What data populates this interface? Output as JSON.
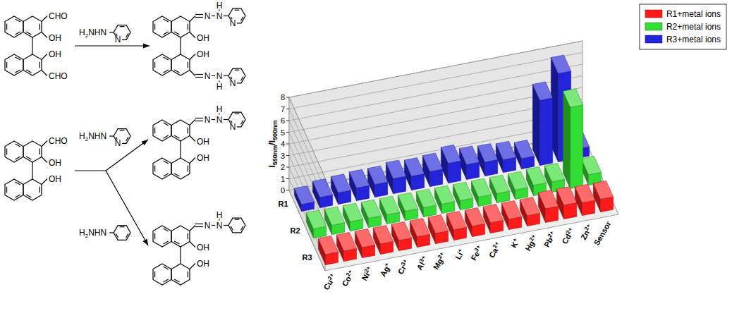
{
  "chart_data": {
    "type": "bar",
    "y_label": "I550nm/I500nm",
    "categories": [
      "Cu2+",
      "Co2+",
      "Ni2+",
      "Ag+",
      "Cr3+",
      "Al3+",
      "Mg2+",
      "Li+",
      "Fe3+",
      "Ca2+",
      "K+",
      "Hg2+",
      "Pb2+",
      "Cd2+",
      "Zn2+",
      "Sensor"
    ],
    "depth_categories": [
      "R1",
      "R2",
      "R3"
    ],
    "series": [
      {
        "name": "R1+metal ions",
        "color": "#ff1a1a",
        "values": [
          0.9,
          0.9,
          0.9,
          0.9,
          0.9,
          0.9,
          0.9,
          0.9,
          0.9,
          0.9,
          0.9,
          0.9,
          1.2,
          1.2,
          1.1,
          1.1
        ]
      },
      {
        "name": "R2+metal ions",
        "color": "#33dd33",
        "values": [
          0.8,
          0.8,
          0.8,
          0.8,
          0.8,
          0.8,
          0.8,
          0.8,
          0.8,
          0.8,
          0.8,
          0.8,
          0.9,
          0.9,
          7.0,
          0.9
        ]
      },
      {
        "name": "R3+metal ions",
        "color": "#2323d9",
        "values": [
          0.6,
          0.9,
          1.0,
          1.1,
          1.1,
          1.3,
          1.2,
          1.3,
          1.7,
          1.3,
          1.2,
          1.1,
          0.9,
          5.6,
          7.6,
          0.8
        ]
      }
    ],
    "ylim": [
      0,
      8
    ],
    "yticks": [
      0,
      1,
      2,
      3,
      4,
      5,
      6,
      7,
      8
    ],
    "grid": true,
    "legend": "top-right"
  },
  "scheme": {
    "formyl": "CHO",
    "hydroxyl": "OH",
    "reagent": "H2NHN",
    "ring_nitrogen": "N",
    "hydrazone_nitrogen": "N",
    "hydrazone_hydrogen": "H"
  }
}
